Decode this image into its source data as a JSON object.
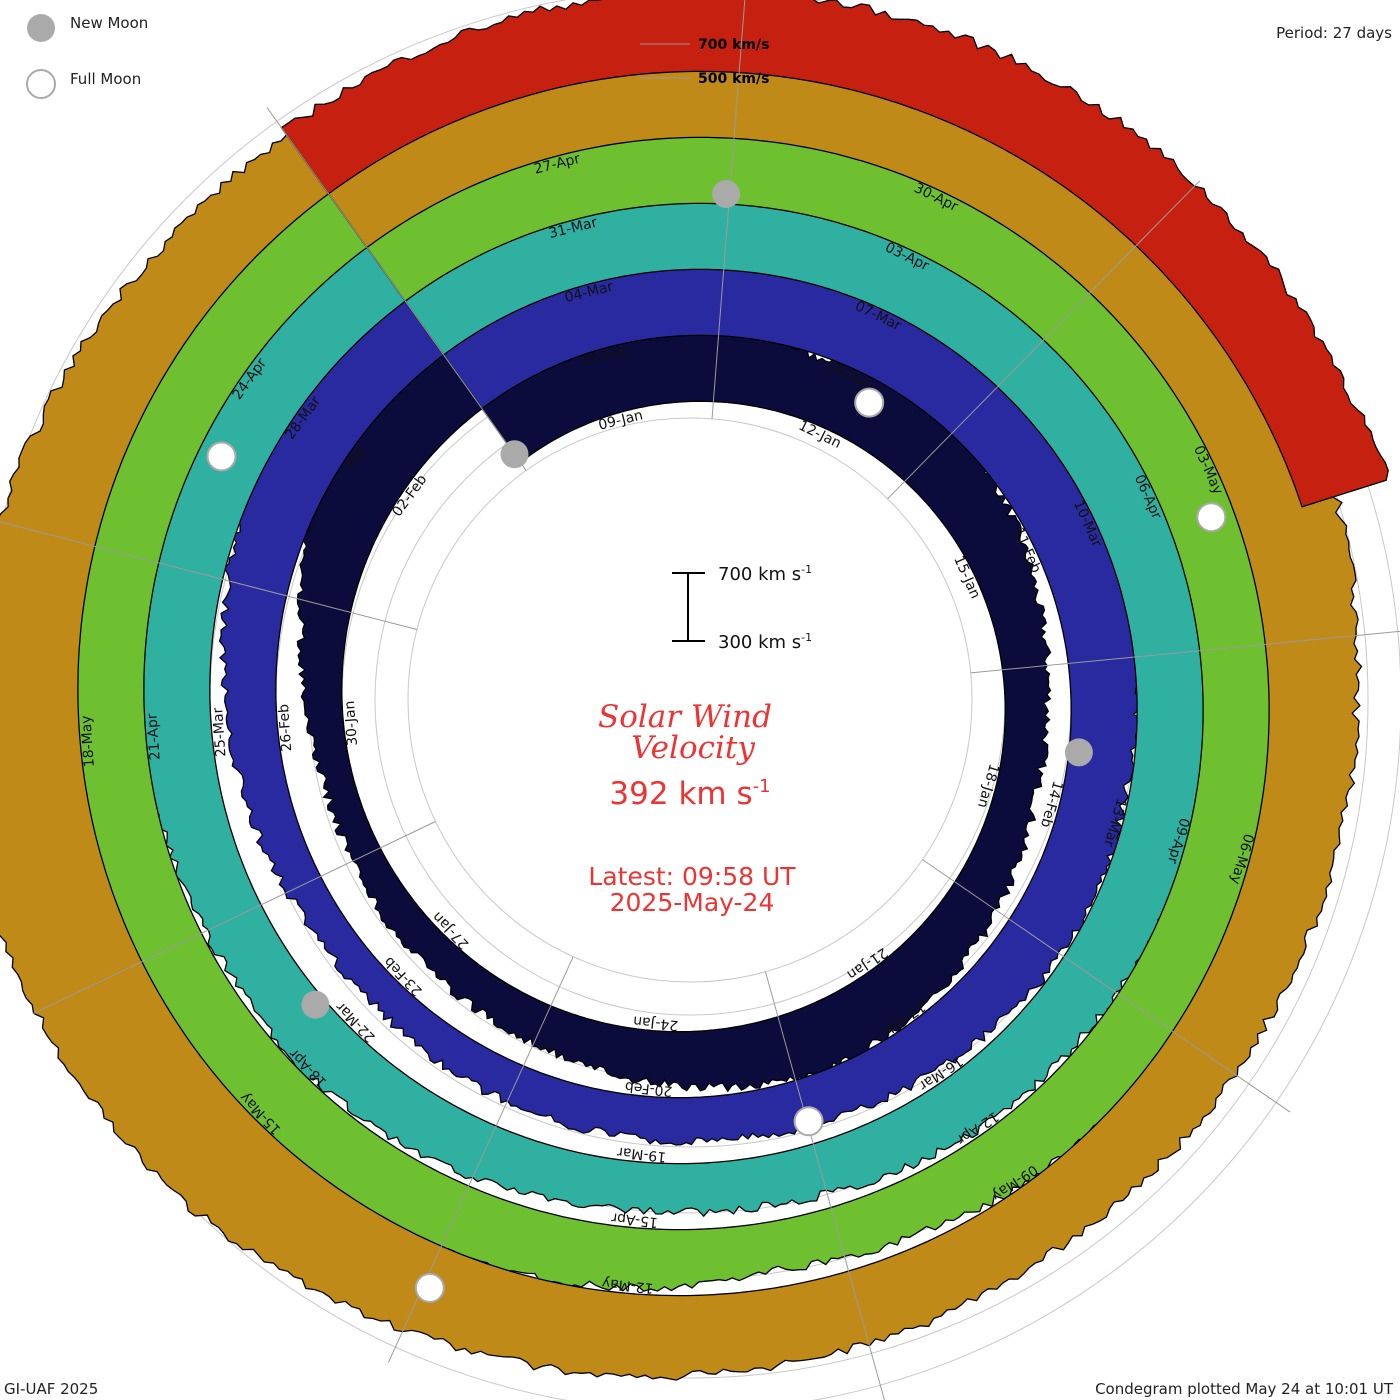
{
  "period_label": "Period: 27 days",
  "legend": {
    "new_moon_label": "New Moon",
    "full_moon_label": "Full Moon",
    "new_moon_color": "#aaaaaa",
    "full_moon_color": "#ffffff"
  },
  "footer": {
    "left": "GI-UAF 2025",
    "right": "Condegram plotted May 24 at 10:01 UT"
  },
  "center": {
    "title_line1": "Solar Wind",
    "title_line2": "Velocity",
    "value": "392 km s",
    "value_exp": "-1",
    "latest": "Latest: 09:58 UT",
    "date": "2025-May-24",
    "text_color": "#ee3333"
  },
  "scale_bar": {
    "top_label": "700 km s",
    "bottom_label": "300 km s",
    "exp": "-1"
  },
  "speed_ticks": [
    "700 km/s",
    "500 km/s"
  ],
  "chart_data": {
    "type": "condegram",
    "title": "Solar Wind Velocity",
    "period_days": 27,
    "unit": "km/s",
    "scale": [
      300,
      700
    ],
    "latest_value": 392,
    "latest_time": "09:58 UT",
    "rings": [
      {
        "color": "#0c0c3c",
        "dates": [
          "09-Jan",
          "12-Jan",
          "15-Jan",
          "18-Jan",
          "21-Jan",
          "24-Jan",
          "27-Jan",
          "30-Jan",
          "02-Feb"
        ],
        "speeds": [
          520,
          560,
          540,
          480,
          430,
          500,
          460,
          420,
          380,
          360,
          350,
          370,
          400,
          420,
          440,
          420,
          390,
          360,
          340,
          330,
          320,
          310,
          330,
          380,
          460,
          500,
          520
        ]
      },
      {
        "color": "#2a2aa0",
        "dates": [
          "05-Feb",
          "08-Feb",
          "11-Feb",
          "14-Feb",
          "17-Feb",
          "20-Feb",
          "23-Feb",
          "26-Feb",
          "Mar"
        ],
        "speeds": [
          460,
          480,
          500,
          530,
          560,
          600,
          560,
          520,
          480,
          440,
          430,
          440,
          420,
          400,
          380,
          370,
          360,
          350,
          340,
          320,
          330,
          360,
          380,
          420,
          460,
          480,
          470
        ]
      },
      {
        "color": "#30b0a0",
        "dates": [
          "04-Mar",
          "07-Mar",
          "10-Mar",
          "13-Mar",
          "16-Mar",
          "19-Mar",
          "22-Mar",
          "25-Mar",
          "28-Mar"
        ],
        "speeds": [
          470,
          480,
          520,
          580,
          620,
          600,
          560,
          540,
          520,
          500,
          470,
          450,
          430,
          420,
          400,
          380,
          380,
          400,
          420,
          430,
          420,
          440,
          480,
          500,
          520,
          500,
          480
        ]
      },
      {
        "color": "#6ec030",
        "dates": [
          "31-Mar",
          "03-Apr",
          "06-Apr",
          "09-Apr",
          "12-Apr",
          "15-Apr",
          "18-Apr",
          "21-Apr",
          "24-Apr"
        ],
        "speeds": [
          480,
          500,
          520,
          560,
          600,
          620,
          600,
          580,
          560,
          540,
          520,
          480,
          460,
          440,
          400,
          380,
          420,
          450,
          470,
          500,
          520,
          540,
          560,
          520,
          500,
          490,
          480
        ]
      },
      {
        "color": "#c08a18",
        "dates": [
          "27-Apr",
          "30-Apr",
          "03-May",
          "06-May",
          "09-May",
          "12-May",
          "15-May",
          "18-May"
        ],
        "speeds": [
          470,
          480,
          520,
          600,
          660,
          680,
          640,
          600,
          560,
          520,
          500,
          480,
          470,
          460,
          470,
          480,
          500,
          520,
          560,
          600,
          620,
          640,
          620,
          560,
          520,
          480,
          460
        ]
      },
      {
        "color": "#c62010",
        "dates": [],
        "speeds": [
          480,
          500,
          520,
          560,
          600,
          580,
          540,
          520
        ]
      }
    ],
    "new_moons": [
      "29-Jan",
      "28-Feb",
      "29-Mar",
      "27-Apr"
    ],
    "full_moons": [
      "13-Jan",
      "12-Feb",
      "14-Mar",
      "13-Apr",
      "12-May"
    ]
  }
}
